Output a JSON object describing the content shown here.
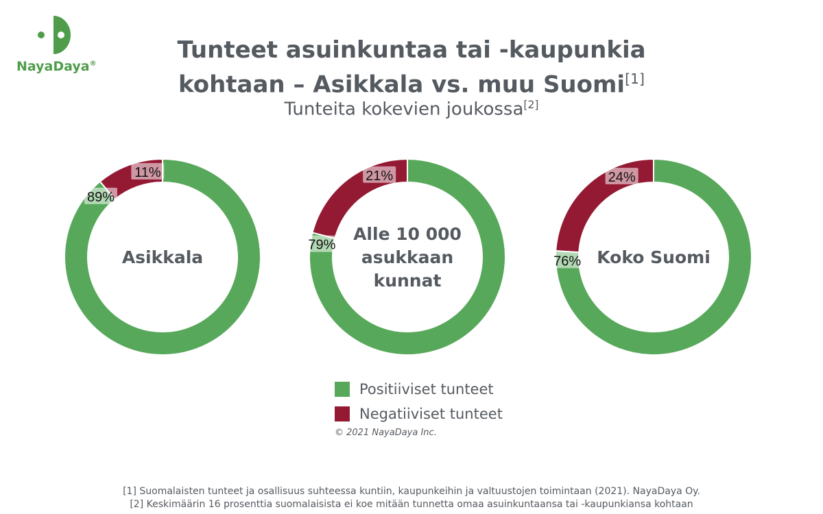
{
  "brand": {
    "name": "NayaDaya",
    "mark": "®"
  },
  "header": {
    "title_line1": "Tunteet asuinkuntaa tai -kaupunkia",
    "title_line2": "kohtaan – Asikkala vs. muu Suomi",
    "title_ref": "[1]",
    "subtitle": "Tunteita kokevien joukossa",
    "subtitle_ref": "[2]"
  },
  "colors": {
    "positive": "#57a85a",
    "negative": "#941a33"
  },
  "chart_data": [
    {
      "type": "pie",
      "title": "Asikkala",
      "center_lines": [
        "Asikkala"
      ],
      "categories": [
        "Positiiviset tunteet",
        "Negatiiviset tunteet"
      ],
      "values": [
        89,
        11
      ],
      "labels": [
        "89%",
        "11%"
      ]
    },
    {
      "type": "pie",
      "title": "Alle 10 000 asukkaan kunnat",
      "center_lines": [
        "Alle 10 000",
        "asukkaan",
        "kunnat"
      ],
      "categories": [
        "Positiiviset tunteet",
        "Negatiiviset tunteet"
      ],
      "values": [
        79,
        21
      ],
      "labels": [
        "79%",
        "21%"
      ]
    },
    {
      "type": "pie",
      "title": "Koko Suomi",
      "center_lines": [
        "Koko Suomi"
      ],
      "categories": [
        "Positiiviset tunteet",
        "Negatiiviset tunteet"
      ],
      "values": [
        76,
        24
      ],
      "labels": [
        "76%",
        "24%"
      ]
    }
  ],
  "legend": [
    {
      "label": "Positiiviset tunteet",
      "color": "#57a85a"
    },
    {
      "label": "Negatiiviset tunteet",
      "color": "#941a33"
    }
  ],
  "copyright": "© 2021 NayaDaya Inc.",
  "footnotes": [
    "[1] Suomalaisten tunteet ja osallisuus suhteessa kuntiin, kaupunkeihin ja valtuustojen toimintaan (2021). NayaDaya Oy.",
    "[2] Keskimäärin 16 prosenttia suomalaisista ei koe mitään tunnetta omaa asuinkuntaansa tai -kaupunkiansa kohtaan"
  ]
}
